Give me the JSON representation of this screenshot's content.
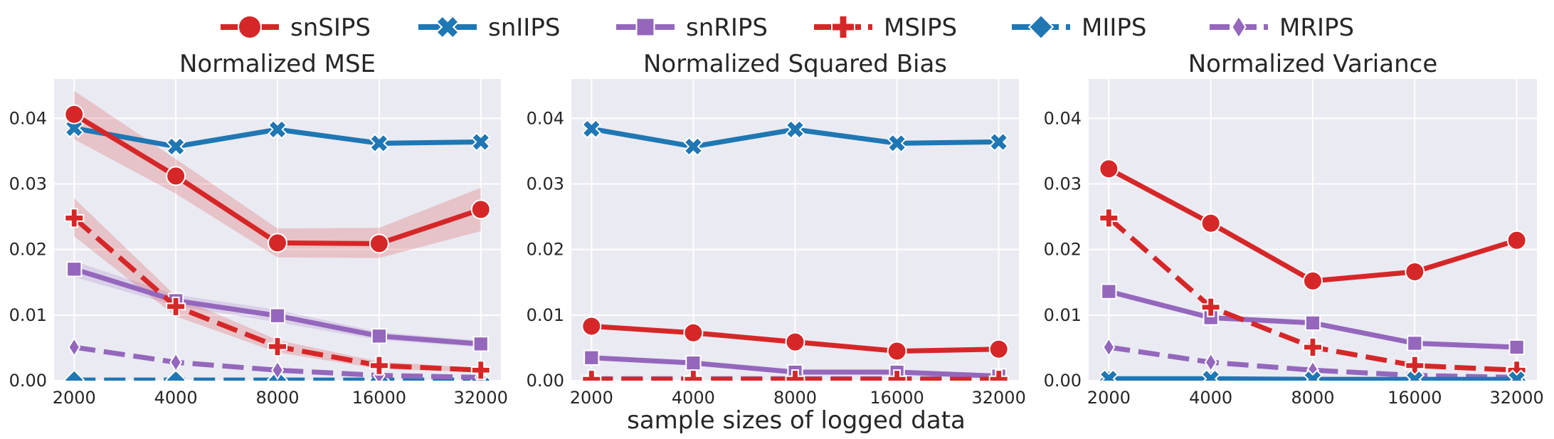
{
  "chart_data": {
    "type": "line",
    "x": [
      2000,
      4000,
      8000,
      16000,
      32000
    ],
    "xscale": "log2",
    "xlabel": "sample sizes of logged data",
    "grid": true,
    "legend_position": "top-center",
    "legend": [
      {
        "name": "snSIPS",
        "color": "#d62728",
        "marker": "circle",
        "dash": "solid"
      },
      {
        "name": "snIIPS",
        "color": "#1f77b4",
        "marker": "x",
        "dash": "solid"
      },
      {
        "name": "snRIPS",
        "color": "#9467bd",
        "marker": "square",
        "dash": "solid"
      },
      {
        "name": "MSIPS",
        "color": "#d62728",
        "marker": "plus",
        "dash": "dashed"
      },
      {
        "name": "MIIPS",
        "color": "#1f77b4",
        "marker": "diamond",
        "dash": "dashed"
      },
      {
        "name": "MRIPS",
        "color": "#9467bd",
        "marker": "thin-diamond",
        "dash": "dashed"
      }
    ],
    "panels": [
      {
        "title": "Normalized MSE",
        "ylim": [
          0,
          0.046
        ],
        "yticks": [
          "0.00",
          "0.01",
          "0.02",
          "0.03",
          "0.04"
        ],
        "series": [
          {
            "name": "snSIPS",
            "values": [
              0.0406,
              0.0312,
              0.021,
              0.0209,
              0.0261
            ],
            "lower": [
              0.0368,
              0.0285,
              0.0188,
              0.0187,
              0.0228
            ],
            "upper": [
              0.0442,
              0.0338,
              0.0232,
              0.0233,
              0.0294
            ]
          },
          {
            "name": "snIIPS",
            "values": [
              0.0385,
              0.0357,
              0.0383,
              0.0362,
              0.0364
            ]
          },
          {
            "name": "snRIPS",
            "values": [
              0.017,
              0.0122,
              0.0099,
              0.0068,
              0.0056
            ],
            "lower": [
              0.0158,
              0.0114,
              0.0089,
              0.0062,
              0.0051
            ],
            "upper": [
              0.0182,
              0.0131,
              0.0108,
              0.0074,
              0.0061
            ]
          },
          {
            "name": "MSIPS",
            "values": [
              0.0248,
              0.0113,
              0.0052,
              0.0023,
              0.0016
            ],
            "lower": [
              0.022,
              0.0098,
              0.0043,
              0.0018,
              0.0013
            ],
            "upper": [
              0.0278,
              0.0129,
              0.0062,
              0.0029,
              0.0019
            ]
          },
          {
            "name": "MIIPS",
            "values": [
              0.0001,
              0.0001,
              0.0001,
              0.0001,
              0.0001
            ]
          },
          {
            "name": "MRIPS",
            "values": [
              0.0051,
              0.0028,
              0.0016,
              0.0008,
              0.0005
            ]
          }
        ]
      },
      {
        "title": "Normalized Squared Bias",
        "ylim": [
          0,
          0.046
        ],
        "yticks": [
          "0.00",
          "0.01",
          "0.02",
          "0.03",
          "0.04"
        ],
        "series": [
          {
            "name": "snSIPS",
            "values": [
              0.0083,
              0.0073,
              0.0059,
              0.0045,
              0.0048
            ]
          },
          {
            "name": "snIIPS",
            "values": [
              0.0384,
              0.0357,
              0.0383,
              0.0362,
              0.0364
            ]
          },
          {
            "name": "snRIPS",
            "values": [
              0.0035,
              0.0027,
              0.0013,
              0.0013,
              0.0007
            ]
          },
          {
            "name": "MSIPS",
            "values": [
              0.0002,
              0.0002,
              0.0002,
              0.0002,
              0.0002
            ]
          },
          {
            "name": "MIIPS",
            "values": [
              0.0001,
              0.0001,
              0.0001,
              0.0001,
              0.0001
            ]
          },
          {
            "name": "MRIPS",
            "values": [
              0.0003,
              0.0003,
              0.0003,
              0.0003,
              0.0003
            ]
          }
        ]
      },
      {
        "title": "Normalized Variance",
        "ylim": [
          0,
          0.046
        ],
        "yticks": [
          "0.00",
          "0.01",
          "0.02",
          "0.03",
          "0.04"
        ],
        "series": [
          {
            "name": "snSIPS",
            "values": [
              0.0323,
              0.024,
              0.0152,
              0.0166,
              0.0214
            ]
          },
          {
            "name": "snIIPS",
            "values": [
              0.0003,
              0.0003,
              0.0002,
              0.0002,
              0.0002
            ]
          },
          {
            "name": "snRIPS",
            "values": [
              0.0136,
              0.0096,
              0.0088,
              0.0057,
              0.0051
            ]
          },
          {
            "name": "MSIPS",
            "values": [
              0.0248,
              0.0112,
              0.0051,
              0.0023,
              0.0016
            ]
          },
          {
            "name": "MIIPS",
            "values": [
              0.0001,
              0.0001,
              0.0001,
              0.0001,
              0.0001
            ]
          },
          {
            "name": "MRIPS",
            "values": [
              0.0051,
              0.0028,
              0.0016,
              0.0008,
              0.0005
            ]
          }
        ]
      }
    ]
  }
}
